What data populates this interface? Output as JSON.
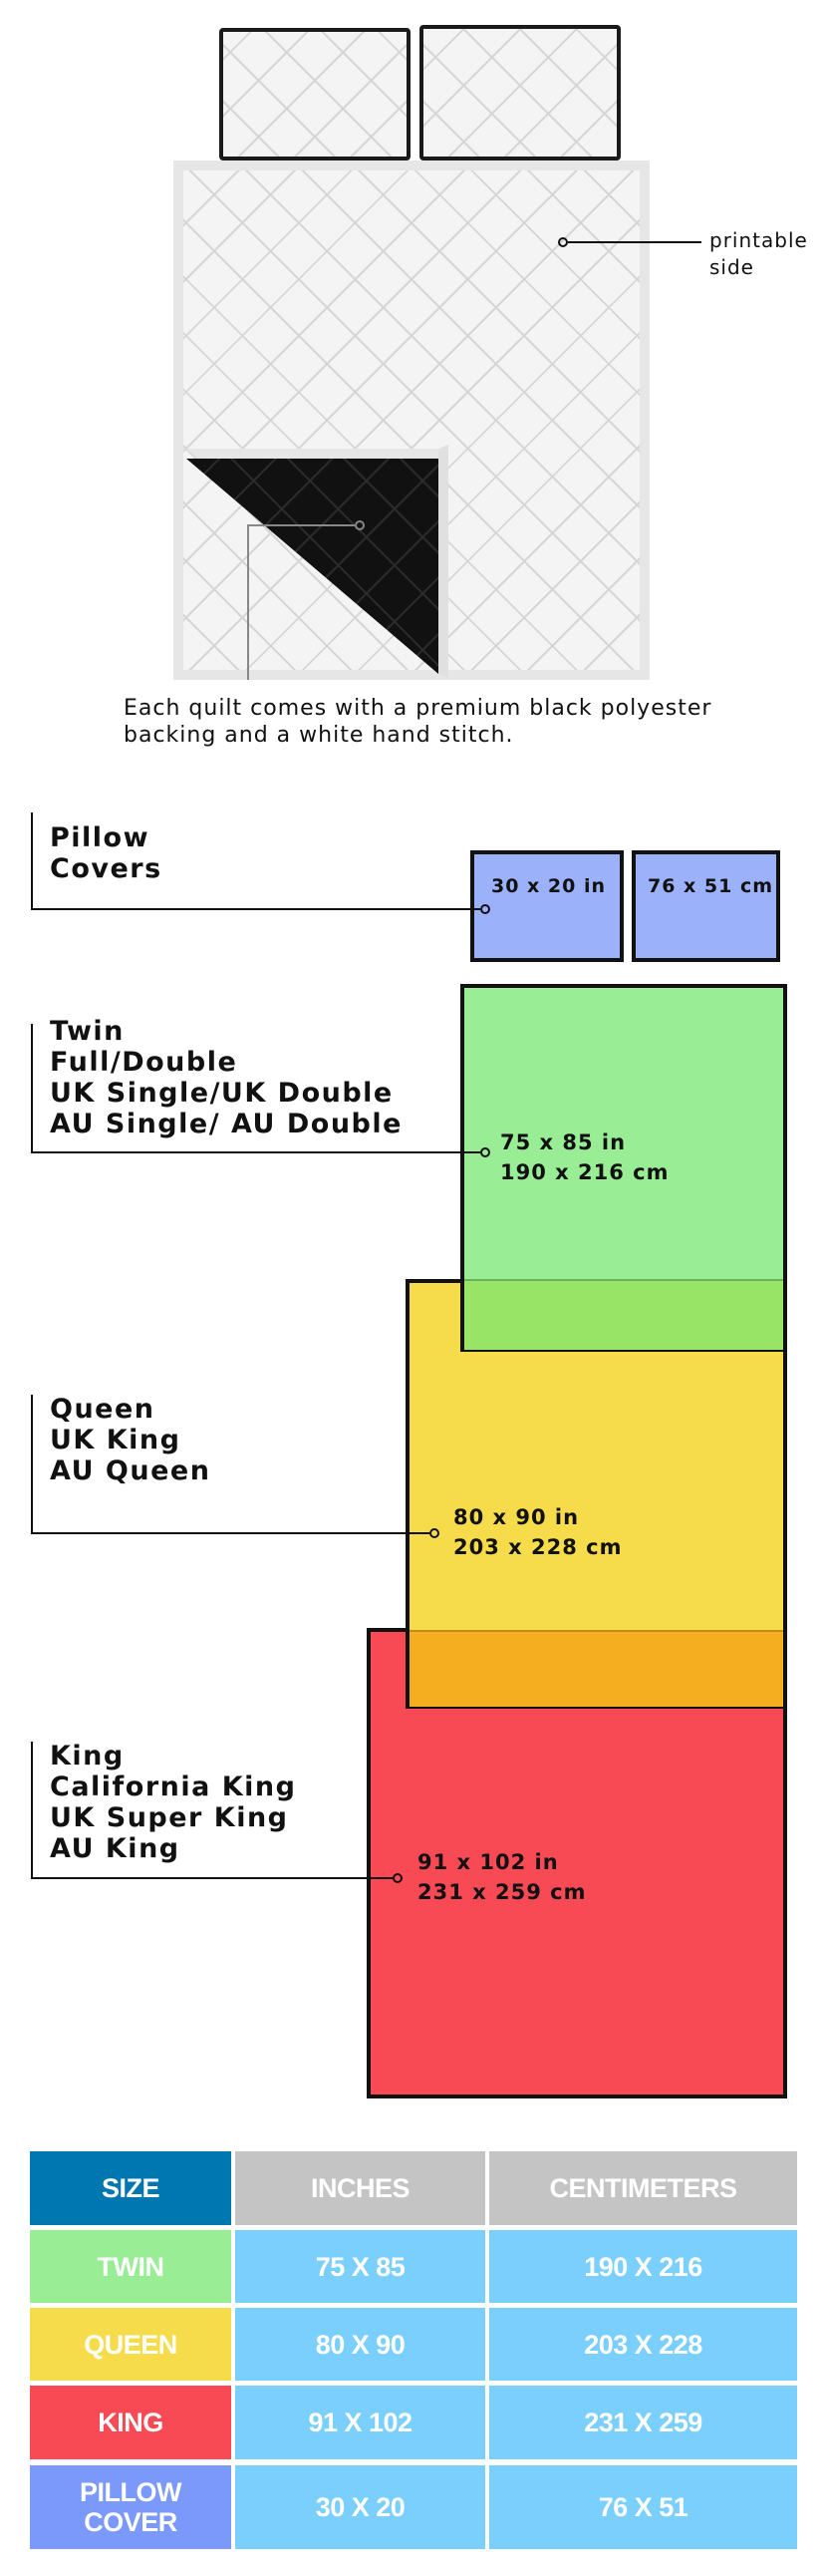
{
  "illustration": {
    "printable_label": [
      "printable",
      "side"
    ],
    "caption": [
      "Each quilt comes with a premium black polyester",
      "backing and a white hand stitch."
    ]
  },
  "size_diagram": {
    "pillow": {
      "labels": [
        "Pillow",
        "Covers"
      ],
      "inches": "30 x 20 in",
      "cm": "76 x 51 cm",
      "color": "#9bb2fb"
    },
    "twin": {
      "labels": [
        "Twin",
        "Full/Double",
        "UK Single/UK Double",
        "AU Single/ AU Double"
      ],
      "inches": "75 x 85 in",
      "cm": "190 x 216 cm",
      "color": "#99ee95"
    },
    "queen": {
      "labels": [
        "Queen",
        "UK King",
        "AU Queen"
      ],
      "inches": "80 x 90 in",
      "cm": "203 x 228 cm",
      "color": "#f6dc4a"
    },
    "king": {
      "labels": [
        "King",
        "California King",
        "UK Super King",
        "AU King"
      ],
      "inches": "91 x 102 in",
      "cm": "231 x 259 cm",
      "color": "#f84a55"
    }
  },
  "size_table": {
    "headers": [
      "SIZE",
      "INCHES",
      "CENTIMETERS"
    ],
    "rows": [
      {
        "size": "TWIN",
        "inches": "75 X 85",
        "cm": "190 X 216",
        "color": "#99ee95"
      },
      {
        "size": "QUEEN",
        "inches": "80 X 90",
        "cm": "203 X 228",
        "color": "#f6dc4a"
      },
      {
        "size": "KING",
        "inches": "91 X 102",
        "cm": "231 X 259",
        "color": "#f84a55"
      },
      {
        "size_lines": [
          "PILLOW",
          "COVER"
        ],
        "inches": "30 X 20",
        "cm": "76 X 51",
        "color": "#7b98fb"
      }
    ],
    "colors": {
      "size_header": "#0077b0",
      "header": "#c4c4c4",
      "value_cell": "#7acffd"
    }
  }
}
